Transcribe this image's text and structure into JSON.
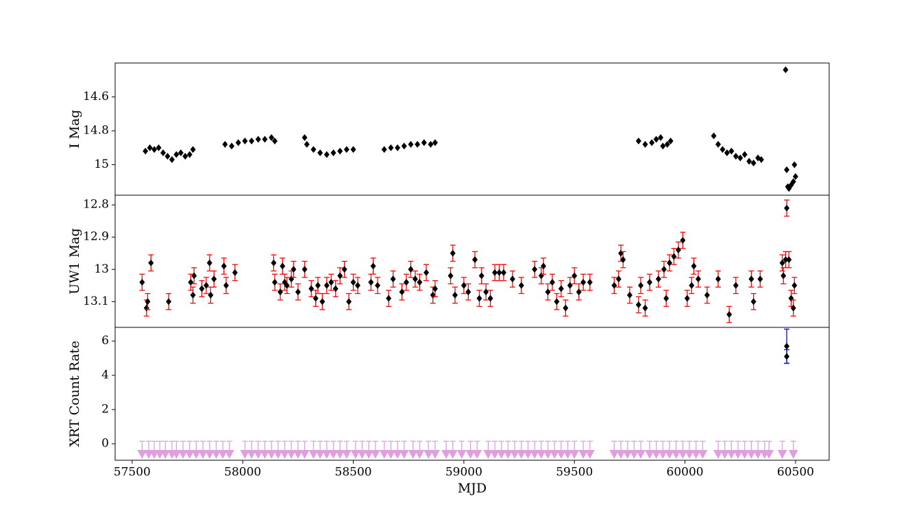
{
  "chart_data": [
    {
      "type": "scatter",
      "ylabel": "I Mag",
      "xlim": [
        57423,
        60652
      ],
      "ylim": [
        15.18,
        14.4
      ],
      "yticks": [
        14.6,
        14.8,
        15.0
      ],
      "series": [
        {
          "color": "#000000",
          "marker": "diamond",
          "x": [
            57560,
            57580,
            57600,
            57620,
            57640,
            57660,
            57680,
            57700,
            57720,
            57740,
            57760,
            57775,
            57920,
            57950,
            57980,
            58010,
            58040,
            58070,
            58100,
            58130,
            58145,
            58280,
            58290,
            58320,
            58350,
            58380,
            58410,
            58440,
            58470,
            58500,
            58640,
            58670,
            58700,
            58730,
            58760,
            58790,
            58820,
            58850,
            58870,
            59790,
            59820,
            59850,
            59870,
            59890,
            59900,
            59920,
            59935,
            60130,
            60150,
            60170,
            60190,
            60210,
            60230,
            60250,
            60270,
            60290,
            60310,
            60330,
            60345,
            60455,
            60460,
            60465,
            60470,
            60480,
            60490,
            60500,
            60495
          ],
          "values": [
            14.92,
            14.9,
            14.91,
            14.9,
            14.93,
            14.95,
            14.97,
            14.94,
            14.93,
            14.95,
            14.94,
            14.91,
            14.88,
            14.89,
            14.87,
            14.86,
            14.86,
            14.85,
            14.85,
            14.84,
            14.86,
            14.84,
            14.88,
            14.91,
            14.93,
            14.94,
            14.93,
            14.92,
            14.91,
            14.91,
            14.91,
            14.9,
            14.9,
            14.89,
            14.88,
            14.88,
            14.87,
            14.88,
            14.87,
            14.86,
            14.88,
            14.87,
            14.85,
            14.84,
            14.89,
            14.88,
            14.86,
            14.83,
            14.88,
            14.91,
            14.93,
            14.92,
            14.95,
            14.96,
            14.94,
            14.98,
            14.99,
            14.96,
            14.97,
            14.44,
            15.03,
            15.13,
            15.14,
            15.12,
            15.1,
            15.07,
            15.0
          ]
        }
      ]
    },
    {
      "type": "scatter",
      "ylabel": "UW1 Mag",
      "xlim": [
        57423,
        60652
      ],
      "ylim": [
        13.18,
        12.77
      ],
      "yticks": [
        12.8,
        12.9,
        13.0,
        13.1
      ],
      "series": [
        {
          "color": "#000000",
          "marker": "diamond",
          "ecolor": "#ff0000",
          "error": 0.025,
          "x": [
            57545,
            57565,
            57570,
            57585,
            57665,
            57765,
            57775,
            57780,
            57815,
            57835,
            57850,
            57855,
            57870,
            57915,
            57925,
            57965,
            58140,
            58145,
            58170,
            58180,
            58190,
            58200,
            58220,
            58230,
            58250,
            58280,
            58310,
            58330,
            58340,
            58360,
            58380,
            58400,
            58420,
            58440,
            58460,
            58480,
            58500,
            58520,
            58580,
            58590,
            58610,
            58660,
            58680,
            58720,
            58740,
            58760,
            58780,
            58800,
            58830,
            58860,
            58870,
            58940,
            58950,
            58960,
            59000,
            59020,
            59050,
            59070,
            59080,
            59100,
            59120,
            59140,
            59160,
            59180,
            59220,
            59260,
            59320,
            59350,
            59360,
            59380,
            59400,
            59420,
            59440,
            59460,
            59480,
            59500,
            59520,
            59540,
            59570,
            59680,
            59700,
            59710,
            59720,
            59750,
            59790,
            59800,
            59820,
            59840,
            59880,
            59905,
            59915,
            59930,
            59950,
            59970,
            59990,
            60010,
            60030,
            60040,
            60060,
            60100,
            60150,
            60200,
            60230,
            60300,
            60310,
            60340,
            60440,
            60445,
            60455,
            60460,
            60470,
            60480,
            60490,
            60495
          ],
          "values": [
            13.04,
            13.12,
            13.1,
            12.98,
            13.1,
            13.04,
            13.08,
            13.02,
            13.06,
            13.05,
            12.98,
            13.08,
            13.03,
            12.99,
            13.05,
            13.01,
            12.98,
            13.04,
            13.07,
            12.99,
            13.04,
            13.05,
            13.03,
            13.0,
            13.07,
            13.0,
            13.06,
            13.09,
            13.05,
            13.1,
            13.05,
            13.04,
            13.06,
            13.02,
            13.0,
            13.1,
            13.04,
            13.05,
            13.04,
            12.99,
            13.05,
            13.09,
            13.03,
            13.07,
            13.04,
            13.0,
            13.03,
            13.04,
            13.01,
            13.08,
            13.06,
            13.02,
            12.95,
            13.08,
            13.05,
            13.07,
            12.97,
            13.09,
            13.02,
            13.07,
            13.09,
            13.01,
            13.01,
            13.01,
            13.03,
            13.05,
            13.0,
            13.02,
            12.99,
            13.07,
            13.04,
            13.1,
            13.06,
            13.12,
            13.05,
            13.02,
            13.07,
            13.04,
            13.04,
            13.05,
            13.03,
            12.95,
            12.97,
            13.08,
            13.11,
            13.05,
            13.12,
            13.04,
            13.03,
            13.0,
            13.09,
            12.98,
            12.96,
            12.94,
            12.91,
            13.09,
            13.05,
            12.99,
            13.03,
            13.08,
            13.03,
            13.14,
            13.05,
            13.03,
            13.1,
            13.03,
            12.98,
            13.02,
            12.97,
            12.81,
            12.97,
            13.09,
            13.12,
            13.05
          ]
        }
      ]
    },
    {
      "type": "scatter",
      "ylabel": "XRT Count Rate",
      "xlabel": "MJD",
      "xlim": [
        57423,
        60652
      ],
      "ylim": [
        -0.96,
        6.8
      ],
      "yticks": [
        0,
        2,
        4,
        6
      ],
      "xticks": [
        57500,
        58000,
        58500,
        59000,
        59500,
        60000,
        60500
      ],
      "series": [
        {
          "color": "#dda0dd",
          "marker": "triangle-down",
          "ecolor": "#dda0dd",
          "error": 0.75,
          "x": [
            57545,
            57575,
            57600,
            57625,
            57650,
            57680,
            57700,
            57730,
            57760,
            57790,
            57820,
            57850,
            57880,
            57910,
            57940,
            58010,
            58040,
            58070,
            58100,
            58130,
            58160,
            58190,
            58220,
            58250,
            58280,
            58320,
            58350,
            58380,
            58410,
            58440,
            58470,
            58510,
            58540,
            58570,
            58600,
            58640,
            58670,
            58700,
            58730,
            58770,
            58800,
            58840,
            58870,
            58920,
            58950,
            58990,
            59030,
            59060,
            59110,
            59140,
            59170,
            59200,
            59230,
            59260,
            59290,
            59320,
            59350,
            59380,
            59410,
            59440,
            59470,
            59500,
            59540,
            59570,
            59680,
            59710,
            59740,
            59770,
            59800,
            59840,
            59870,
            59900,
            59930,
            59960,
            59990,
            60020,
            60050,
            60080,
            60150,
            60180,
            60210,
            60240,
            60270,
            60300,
            60330,
            60360,
            60380,
            60440,
            60490
          ],
          "values": [
            -0.6,
            -0.6,
            -0.6,
            -0.6,
            -0.6,
            -0.6,
            -0.6,
            -0.6,
            -0.6,
            -0.6,
            -0.6,
            -0.6,
            -0.6,
            -0.6,
            -0.6,
            -0.6,
            -0.6,
            -0.6,
            -0.6,
            -0.6,
            -0.6,
            -0.6,
            -0.6,
            -0.6,
            -0.6,
            -0.6,
            -0.6,
            -0.6,
            -0.6,
            -0.6,
            -0.6,
            -0.6,
            -0.6,
            -0.6,
            -0.6,
            -0.6,
            -0.6,
            -0.6,
            -0.6,
            -0.6,
            -0.6,
            -0.6,
            -0.6,
            -0.6,
            -0.6,
            -0.6,
            -0.6,
            -0.6,
            -0.6,
            -0.6,
            -0.6,
            -0.6,
            -0.6,
            -0.6,
            -0.6,
            -0.6,
            -0.6,
            -0.6,
            -0.6,
            -0.6,
            -0.6,
            -0.6,
            -0.6,
            -0.6,
            -0.6,
            -0.6,
            -0.6,
            -0.6,
            -0.6,
            -0.6,
            -0.6,
            -0.6,
            -0.6,
            -0.6,
            -0.6,
            -0.6,
            -0.6,
            -0.6,
            -0.6,
            -0.6,
            -0.6,
            -0.6,
            -0.6,
            -0.6,
            -0.6,
            -0.6,
            -0.6,
            -0.6,
            -0.6
          ]
        },
        {
          "color": "#000000",
          "marker": "diamond",
          "ecolor": "#0000ff",
          "errors": [
            1.0,
            0.4
          ],
          "x": [
            60460,
            60460
          ],
          "values": [
            5.7,
            5.1
          ]
        }
      ]
    }
  ]
}
